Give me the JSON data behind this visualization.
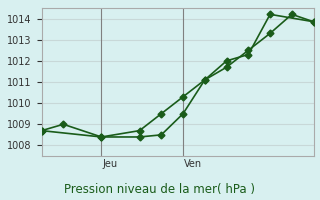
{
  "title": "Pression niveau de la mer( hPa )",
  "ylim": [
    1007.5,
    1014.5
  ],
  "yticks": [
    1008,
    1009,
    1010,
    1011,
    1012,
    1013,
    1014
  ],
  "background_color": "#d8f0f0",
  "grid_color": "#c8d8d8",
  "line_color": "#1a5c1a",
  "vline_positions": [
    0.22,
    0.52
  ],
  "vline_labels": [
    "Jeu",
    "Ven"
  ],
  "series1_x": [
    0.0,
    0.08,
    0.22,
    0.36,
    0.44,
    0.52,
    0.6,
    0.68,
    0.76,
    0.84,
    0.92,
    1.0
  ],
  "series1_y": [
    1008.7,
    1009.0,
    1008.4,
    1008.4,
    1008.5,
    1009.5,
    1011.1,
    1011.7,
    1012.5,
    1013.3,
    1014.2,
    1013.85
  ],
  "series2_x": [
    0.0,
    0.22,
    0.36,
    0.44,
    0.52,
    0.6,
    0.68,
    0.76,
    0.84,
    1.0
  ],
  "series2_y": [
    1008.7,
    1008.4,
    1008.7,
    1009.5,
    1010.3,
    1011.1,
    1012.0,
    1012.3,
    1014.2,
    1013.85
  ],
  "marker": "D",
  "markersize": 3.5,
  "linewidth": 1.2,
  "title_fontsize": 8.5,
  "tick_fontsize": 7.0
}
